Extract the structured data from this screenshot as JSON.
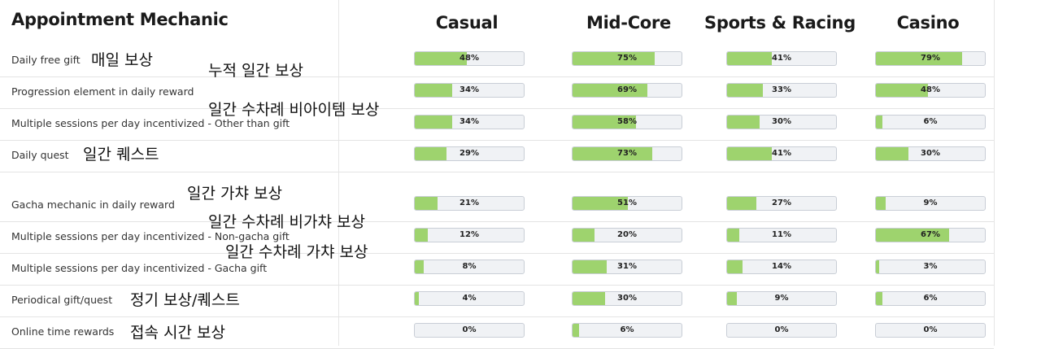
{
  "chart_data": {
    "type": "bar",
    "title": "Appointment Mechanic",
    "columns": [
      "Casual",
      "Mid-Core",
      "Sports & Racing",
      "Casino"
    ],
    "rows": [
      {
        "label": "Daily free gift",
        "values": [
          48,
          75,
          41,
          79
        ],
        "display": [
          "48%",
          "75%",
          "41%",
          "79%"
        ]
      },
      {
        "label": "Progression element in daily reward",
        "values": [
          34,
          69,
          33,
          48
        ],
        "display": [
          "34%",
          "69%",
          "33%",
          "48%"
        ]
      },
      {
        "label": "Multiple sessions per day incentivized - Other than gift",
        "values": [
          34,
          58,
          30,
          6
        ],
        "display": [
          "34%",
          "58%",
          "30%",
          "6%"
        ]
      },
      {
        "label": "Daily quest",
        "values": [
          29,
          73,
          41,
          30
        ],
        "display": [
          "29%",
          "73%",
          "41%",
          "30%"
        ]
      },
      {
        "label": "Gacha mechanic in daily reward",
        "values": [
          21,
          51,
          27,
          9
        ],
        "display": [
          "21%",
          "51%",
          "27%",
          "9%"
        ]
      },
      {
        "label": "Multiple sessions per day incentivized - Non-gacha gift",
        "values": [
          12,
          20,
          11,
          67
        ],
        "display": [
          "12%",
          "20%",
          "11%",
          "67%"
        ]
      },
      {
        "label": "Multiple sessions per day incentivized - Gacha gift",
        "values": [
          8,
          31,
          14,
          3
        ],
        "display": [
          "8%",
          "31%",
          "14%",
          "3%"
        ]
      },
      {
        "label": "Periodical gift/quest",
        "values": [
          4,
          30,
          9,
          6
        ],
        "display": [
          "4%",
          "30%",
          "9%",
          "6%"
        ]
      },
      {
        "label": "Online time rewards",
        "values": [
          0,
          6,
          0,
          0
        ],
        "display": [
          "0%",
          "6%",
          "0%",
          "0%"
        ]
      }
    ],
    "ylim": [
      0,
      100
    ],
    "bar_color": "#9ed36e",
    "track_color": "#f0f2f5"
  },
  "annotations": [
    {
      "text": "매일 보상"
    },
    {
      "text": "누적 일간 보상"
    },
    {
      "text": "일간 수차례 비아이템 보상"
    },
    {
      "text": "일간 퀘스트"
    },
    {
      "text": "일간 가챠 보상"
    },
    {
      "text": "일간 수차례 비가챠 보상"
    },
    {
      "text": "일간 수차례 가챠 보상"
    },
    {
      "text": "정기 보상/퀘스트"
    },
    {
      "text": "접속 시간 보상"
    }
  ]
}
